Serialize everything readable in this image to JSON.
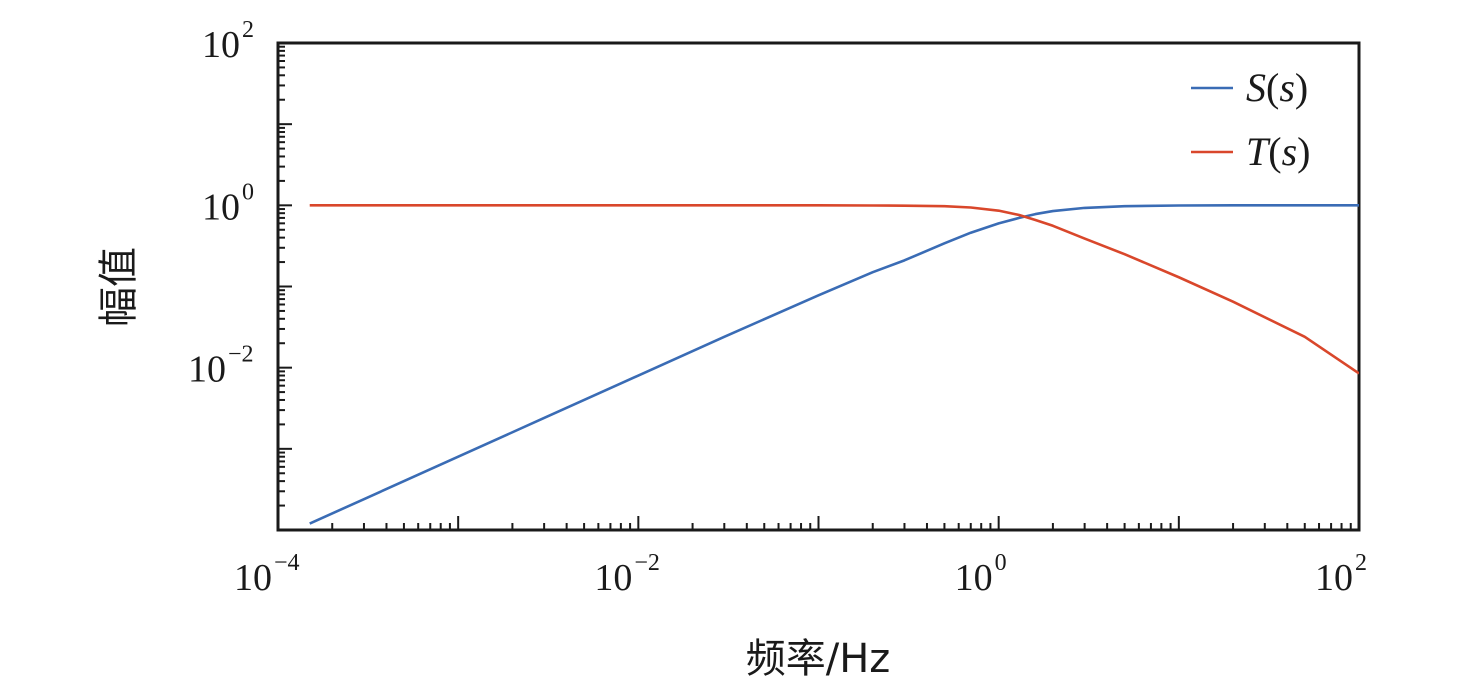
{
  "chart_data": {
    "type": "line",
    "xscale": "log",
    "yscale": "log",
    "xlim": [
      0.0001,
      100
    ],
    "ylim": [
      0.0001,
      100
    ],
    "xlabel": "频率/Hz",
    "ylabel": "幅值",
    "grid": false,
    "legend_position": "top-right",
    "x_ticks": [
      {
        "value": 0.0001,
        "base": "10",
        "exp": "−4"
      },
      {
        "value": 0.01,
        "base": "10",
        "exp": "−2"
      },
      {
        "value": 1,
        "base": "10",
        "exp": "0"
      },
      {
        "value": 100,
        "base": "10",
        "exp": "2"
      }
    ],
    "y_ticks": [
      {
        "value": 0.01,
        "base": "10",
        "exp": "−2"
      },
      {
        "value": 1,
        "base": "10",
        "exp": "0"
      },
      {
        "value": 100,
        "base": "10",
        "exp": "2"
      }
    ],
    "x": [
      0.00015,
      0.0003,
      0.001,
      0.003,
      0.01,
      0.03,
      0.1,
      0.2,
      0.3,
      0.5,
      0.7,
      1,
      1.3,
      1.6,
      2,
      3,
      5,
      10,
      20,
      50,
      100
    ],
    "series": [
      {
        "name": "S(s)",
        "label_main": "S",
        "label_arg": "s",
        "color": "#3a6cb5",
        "values": [
          0.00012,
          0.00024,
          0.0008,
          0.0024,
          0.008,
          0.024,
          0.078,
          0.15,
          0.21,
          0.34,
          0.46,
          0.6,
          0.7,
          0.78,
          0.85,
          0.93,
          0.975,
          0.995,
          1.0,
          1.0,
          1.0
        ]
      },
      {
        "name": "T(s)",
        "label_main": "T",
        "label_arg": "s",
        "color": "#d9472b",
        "values": [
          1.0,
          1.0,
          1.0,
          1.0,
          1.0,
          1.0,
          1.0,
          0.995,
          0.99,
          0.975,
          0.94,
          0.86,
          0.76,
          0.66,
          0.56,
          0.39,
          0.25,
          0.13,
          0.065,
          0.024,
          0.0085
        ]
      }
    ]
  }
}
